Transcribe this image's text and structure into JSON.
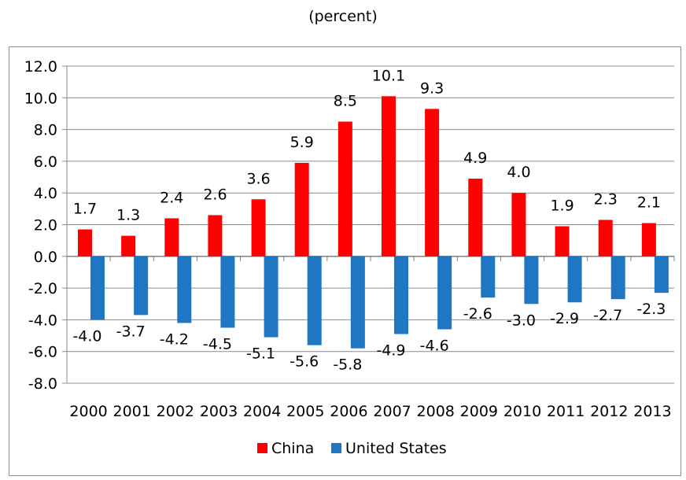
{
  "subtitle": "(percent)",
  "colors": {
    "china": "#ff0000",
    "us": "#1f77c4",
    "grid": "#8c8c8c"
  },
  "chart_data": {
    "type": "bar",
    "categories": [
      "2000",
      "2001",
      "2002",
      "2003",
      "2004",
      "2005",
      "2006",
      "2007",
      "2008",
      "2009",
      "2010",
      "2011",
      "2012",
      "2013"
    ],
    "series": [
      {
        "name": "China",
        "values": [
          1.7,
          1.3,
          2.4,
          2.6,
          3.6,
          5.9,
          8.5,
          10.1,
          9.3,
          4.9,
          4.0,
          1.9,
          2.3,
          2.1
        ],
        "labels": [
          "1.7",
          "1.3",
          "2.4",
          "2.6",
          "3.6",
          "5.9",
          "8.5",
          "10.1",
          "9.3",
          "4.9",
          "4.0",
          "1.9",
          "2.3",
          "2.1"
        ]
      },
      {
        "name": "United States",
        "values": [
          -4.0,
          -3.7,
          -4.2,
          -4.5,
          -5.1,
          -5.6,
          -5.8,
          -4.9,
          -4.6,
          -2.6,
          -3.0,
          -2.9,
          -2.7,
          -2.3
        ],
        "labels": [
          "-4.0",
          "-3.7",
          "-4.2",
          "-4.5",
          "-5.1",
          "-5.6",
          "-5.8",
          "-4.9",
          "-4.6",
          "-2.6",
          "-3.0",
          "-2.9",
          "-2.7",
          "-2.3"
        ]
      }
    ],
    "ylim": [
      -8,
      12
    ],
    "yticks": [
      "12.0",
      "10.0",
      "8.0",
      "6.0",
      "4.0",
      "2.0",
      "0.0",
      "-2.0",
      "-4.0",
      "-6.0",
      "-8.0"
    ],
    "ytick_values": [
      12,
      10,
      8,
      6,
      4,
      2,
      0,
      -2,
      -4,
      -6,
      -8
    ],
    "grid": true,
    "legend_position": "bottom"
  }
}
